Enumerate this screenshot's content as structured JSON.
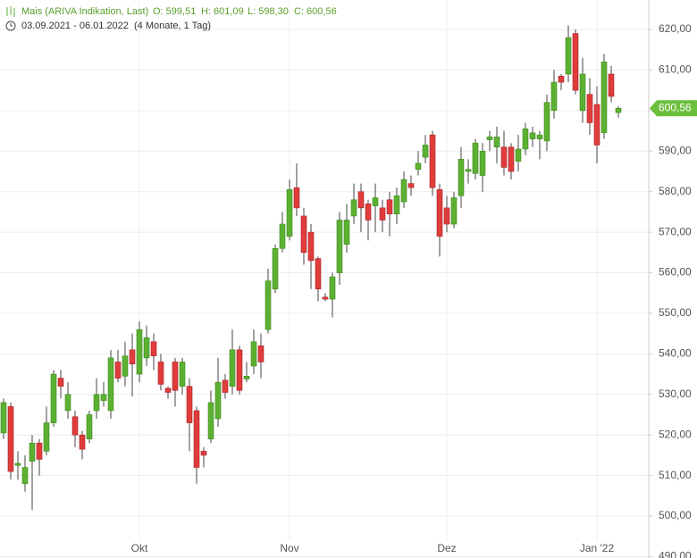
{
  "chart_data": {
    "type": "candlestick",
    "header": {
      "name": "Mais (ARIVA Indikation, Last)",
      "open_label": "O: 599,51",
      "high_label": "H: 601,09",
      "low_label": "L: 598,30",
      "close_label": "C: 600,56",
      "range": "03.09.2021 - 06.01.2022",
      "period": "(4 Monate, 1 Tag)"
    },
    "categories": [
      null,
      null,
      null,
      null,
      null,
      null,
      null,
      null,
      null,
      null,
      null,
      null,
      null,
      null,
      null,
      null,
      null,
      null,
      null,
      "Okt",
      null,
      null,
      null,
      null,
      null,
      null,
      null,
      null,
      null,
      null,
      null,
      null,
      null,
      null,
      null,
      null,
      null,
      null,
      null,
      null,
      "Nov",
      null,
      null,
      null,
      null,
      null,
      null,
      null,
      null,
      null,
      null,
      null,
      null,
      null,
      null,
      null,
      null,
      null,
      null,
      null,
      null,
      null,
      "Dez",
      null,
      null,
      null,
      null,
      null,
      null,
      null,
      null,
      null,
      null,
      null,
      null,
      null,
      null,
      null,
      null,
      null,
      null,
      null,
      null,
      "Jan '22",
      null,
      null,
      null
    ],
    "open": [
      520.5,
      527,
      512.5,
      508,
      513.5,
      518,
      516,
      523,
      534,
      526,
      524.5,
      520,
      519,
      526,
      528.5,
      526,
      538,
      534.5,
      541,
      535,
      539,
      543,
      538,
      531.5,
      538,
      532,
      532,
      526,
      516,
      519,
      524,
      533.5,
      532,
      541,
      533.8,
      537,
      542,
      546,
      556,
      566,
      569,
      581,
      574,
      570,
      563.5,
      554,
      553.5,
      560,
      567,
      574,
      580,
      577,
      576.5,
      576,
      578,
      574.5,
      577.5,
      582,
      585.5,
      588.5,
      594,
      580.5,
      576,
      572,
      579,
      585,
      584.5,
      584,
      592.8,
      591,
      591,
      591,
      587.5,
      590.5,
      593,
      593,
      592.5,
      600,
      608.5,
      609,
      619,
      600,
      604,
      601.5,
      594.5,
      609,
      599.51
    ],
    "high": [
      529,
      528,
      516,
      515,
      520,
      519,
      527,
      536,
      536,
      533,
      526,
      521,
      526,
      534,
      533,
      541,
      541,
      543,
      545,
      548,
      547,
      545,
      540,
      532,
      539,
      539,
      534,
      527,
      517,
      531,
      539,
      535,
      546,
      542,
      538,
      546,
      545,
      561,
      567,
      575,
      583,
      587,
      576,
      572,
      564,
      555,
      560,
      575,
      577,
      582,
      582,
      578,
      582,
      578,
      580,
      581,
      585,
      584,
      590,
      594,
      595,
      582,
      579,
      580,
      591,
      588,
      593,
      592,
      595,
      596,
      595,
      592,
      594,
      597,
      596,
      595,
      604,
      610,
      609,
      621,
      620,
      613,
      608,
      606,
      614,
      611,
      601.09
    ],
    "low": [
      519,
      509,
      509,
      506,
      501.5,
      510,
      515,
      522,
      529,
      524,
      517,
      514,
      518,
      524,
      527,
      524,
      533,
      532,
      529.5,
      533,
      537,
      536,
      531,
      529,
      527,
      530,
      516,
      508,
      512,
      518,
      522,
      529,
      530,
      530,
      533,
      535,
      534,
      545,
      555,
      565,
      568,
      574,
      562,
      556,
      553,
      553,
      549,
      557,
      565,
      572,
      570,
      568,
      570,
      570,
      569,
      572,
      576,
      579,
      584,
      587,
      579,
      564,
      570,
      571,
      576,
      582,
      583,
      580,
      590,
      587,
      584,
      583,
      585,
      589,
      591,
      588,
      590,
      598,
      605,
      607,
      604,
      597,
      594,
      587,
      593,
      602,
      598.3
    ],
    "close": [
      528,
      511,
      513,
      512,
      518,
      514,
      523,
      535,
      532,
      530,
      520,
      516.5,
      525,
      530,
      530,
      539,
      534,
      539.5,
      537.5,
      546,
      544,
      539.5,
      532.5,
      530.5,
      531,
      538,
      523,
      512,
      515,
      528,
      533,
      530.5,
      541,
      531,
      534.5,
      543,
      538,
      558,
      566,
      572,
      580.5,
      576,
      565,
      563,
      556,
      553.5,
      559,
      573,
      573,
      578,
      576,
      573,
      578.5,
      573,
      574.5,
      579,
      583,
      581,
      587,
      591.5,
      581,
      569,
      572,
      578.5,
      588,
      585.5,
      592,
      590,
      593.5,
      593.5,
      586,
      585,
      590.5,
      595.5,
      594.5,
      594,
      602,
      607,
      607,
      618,
      605,
      609,
      597,
      591.5,
      612,
      603.5,
      600.56
    ],
    "up_color": "#5cb032",
    "down_color": "#e03c3c",
    "last_price": {
      "value": 600.56,
      "label": "600,56"
    },
    "ylim": [
      489.66,
      627.27
    ],
    "yticks": [
      {
        "value": 490,
        "label": "490,00"
      },
      {
        "value": 500,
        "label": "500,00"
      },
      {
        "value": 510,
        "label": "510,00"
      },
      {
        "value": 520,
        "label": "520,00"
      },
      {
        "value": 530,
        "label": "530,00"
      },
      {
        "value": 540,
        "label": "540,00"
      },
      {
        "value": 550,
        "label": "550,00"
      },
      {
        "value": 560,
        "label": "560,00"
      },
      {
        "value": 570,
        "label": "570,00"
      },
      {
        "value": 580,
        "label": "580,00"
      },
      {
        "value": 590,
        "label": "590,00"
      },
      {
        "value": 600,
        "label": "600,00"
      },
      {
        "value": 610,
        "label": "610,00"
      },
      {
        "value": 620,
        "label": "620,00"
      }
    ],
    "grid": true
  }
}
